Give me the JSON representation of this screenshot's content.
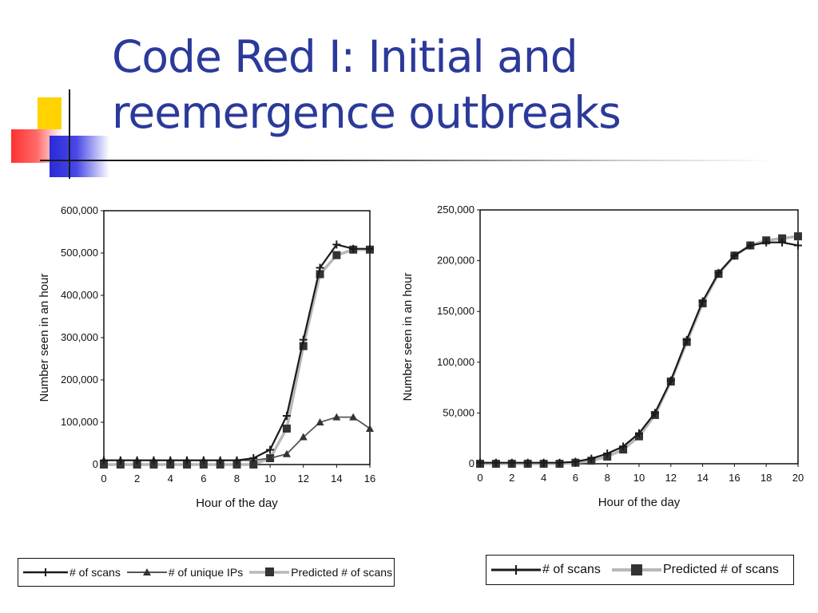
{
  "slide": {
    "title_line1": "Code Red I: Initial and",
    "title_line2": "reemergence outbreaks"
  },
  "chart_data": [
    {
      "type": "line",
      "xlabel": "Hour of the day",
      "ylabel": "Number seen in an hour",
      "xlim": [
        0,
        16
      ],
      "ylim": [
        0,
        600000
      ],
      "x_ticks": [
        "0",
        "2",
        "4",
        "6",
        "8",
        "10",
        "12",
        "14",
        "16"
      ],
      "y_ticks": [
        "0",
        "100,000",
        "200,000",
        "300,000",
        "400,000",
        "500,000",
        "600,000"
      ],
      "legend_placement": "bottom",
      "series": [
        {
          "name": "# of scans",
          "color": "#1a1a1a",
          "marker": "plus",
          "x": [
            0,
            1,
            2,
            3,
            4,
            5,
            6,
            7,
            8,
            9,
            10,
            11,
            12,
            13,
            14,
            15,
            16
          ],
          "y": [
            10000,
            10000,
            10000,
            10000,
            10000,
            10000,
            10000,
            10000,
            10000,
            15000,
            35000,
            115000,
            295000,
            465000,
            520000,
            510000,
            510000
          ]
        },
        {
          "name": "# of unique IPs",
          "color": "#555555",
          "marker": "triangle",
          "x": [
            0,
            1,
            2,
            3,
            4,
            5,
            6,
            7,
            8,
            9,
            10,
            11,
            12,
            13,
            14,
            15,
            16
          ],
          "y": [
            10000,
            10000,
            10000,
            10000,
            10000,
            10000,
            10000,
            10000,
            10000,
            10000,
            15000,
            25000,
            65000,
            100000,
            112000,
            112000,
            85000
          ]
        },
        {
          "name": "Predicted # of scans",
          "color": "#b8b8b8",
          "marker": "square",
          "x": [
            0,
            1,
            2,
            3,
            4,
            5,
            6,
            7,
            8,
            9,
            10,
            11,
            12,
            13,
            14,
            15,
            16
          ],
          "y": [
            0,
            0,
            0,
            0,
            0,
            0,
            0,
            0,
            0,
            0,
            15000,
            85000,
            280000,
            450000,
            495000,
            508000,
            508000
          ]
        }
      ]
    },
    {
      "type": "line",
      "xlabel": "Hour of the day",
      "ylabel": "Number seen in an hour",
      "xlim": [
        0,
        20
      ],
      "ylim": [
        0,
        250000
      ],
      "x_ticks": [
        "0",
        "2",
        "4",
        "6",
        "8",
        "10",
        "12",
        "14",
        "16",
        "18",
        "20"
      ],
      "y_ticks": [
        "0",
        "50,000",
        "100,000",
        "150,000",
        "200,000",
        "250,000"
      ],
      "legend_placement": "bottom",
      "series": [
        {
          "name": "# of scans",
          "color": "#1a1a1a",
          "marker": "plus",
          "x": [
            0,
            1,
            2,
            3,
            4,
            5,
            6,
            7,
            8,
            9,
            10,
            11,
            12,
            13,
            14,
            15,
            16,
            17,
            18,
            19,
            20
          ],
          "y": [
            1000,
            1000,
            1000,
            1000,
            1000,
            1000,
            2000,
            5000,
            10000,
            17000,
            30000,
            50000,
            82000,
            122000,
            160000,
            188000,
            205000,
            215000,
            218000,
            218000,
            215000
          ]
        },
        {
          "name": "Predicted # of scans",
          "color": "#b8b8b8",
          "marker": "square",
          "x": [
            0,
            1,
            2,
            3,
            4,
            5,
            6,
            7,
            8,
            9,
            10,
            11,
            12,
            13,
            14,
            15,
            16,
            17,
            18,
            19,
            20
          ],
          "y": [
            0,
            0,
            0,
            0,
            0,
            0,
            1000,
            3000,
            7000,
            14000,
            27000,
            48000,
            81000,
            120000,
            158000,
            187000,
            205000,
            215000,
            220000,
            222000,
            224000
          ]
        }
      ]
    }
  ]
}
